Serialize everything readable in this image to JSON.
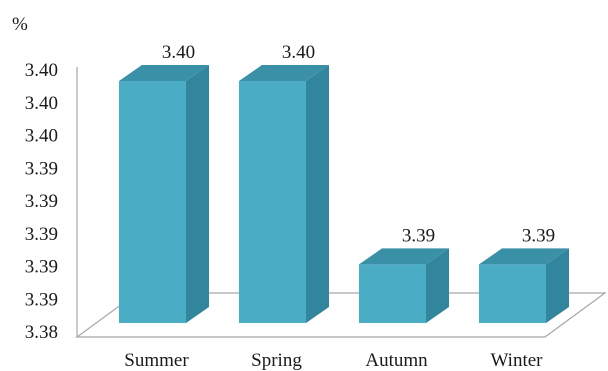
{
  "chart_data": {
    "type": "bar",
    "style": "3d-column",
    "unit_label": "%",
    "categories": [
      "Summer",
      "Spring",
      "Autumn",
      "Winter"
    ],
    "values": [
      3.4,
      3.4,
      3.386,
      3.386
    ],
    "data_labels": [
      "3.40",
      "3.40",
      "3.39",
      "3.39"
    ],
    "y_tick_labels": [
      "3.38",
      "3.39",
      "3.39",
      "3.39",
      "3.39",
      "3.39",
      "3.40",
      "3.40",
      "3.40"
    ],
    "ylim": [
      3.38,
      3.4
    ],
    "grid": false,
    "legend": "none",
    "colors": {
      "front": "#4BACC6",
      "side": "#31859C",
      "top": "#3A90A6",
      "floor": "#a6a6a6"
    }
  }
}
